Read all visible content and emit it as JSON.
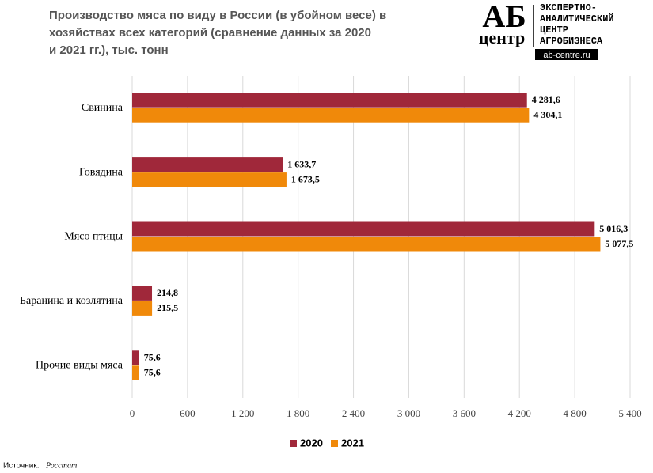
{
  "chart_data": {
    "type": "bar",
    "orientation": "horizontal",
    "title": [
      "Производство  мяса по виду в России (в убойном весе) в",
      "хозяйствах всех категорий (сравнение данных за 2020",
      "и 2021 гг.), тыс. тонн"
    ],
    "logo": {
      "mark_top": "АБ",
      "mark_bottom": "центр",
      "lines": [
        "ЭКСПЕРТНО-",
        "АНАЛИТИЧЕСКИЙ",
        "ЦЕНТР",
        "АГРОБИЗНЕСА"
      ],
      "site": "ab-centre.ru"
    },
    "categories": [
      "Свинина",
      "Говядина",
      "Мясо птицы",
      "Баранина и козлятина",
      "Прочие виды мяса"
    ],
    "series": [
      {
        "name": "2020",
        "color": "#a0283a",
        "values": [
          4281.6,
          1633.7,
          5016.3,
          214.8,
          75.6
        ],
        "value_labels": [
          "4 281,6",
          "1 633,7",
          "5 016,3",
          "214,8",
          "75,6"
        ]
      },
      {
        "name": "2021",
        "color": "#f0890a",
        "values": [
          4304.1,
          1673.5,
          5077.5,
          215.5,
          75.6
        ],
        "value_labels": [
          "4 304,1",
          "1 673,5",
          "5 077,5",
          "215,5",
          "75,6"
        ]
      }
    ],
    "xlim": [
      0,
      5400
    ],
    "xticks": [
      0,
      600,
      {
        "value": 1200,
        "label": "1 200"
      },
      {
        "value": 1800,
        "label": "1 800"
      },
      {
        "value": 2400,
        "label": "2 400"
      },
      {
        "value": 3000,
        "label": "3 000"
      },
      {
        "value": 3600,
        "label": "3 600"
      },
      {
        "value": 4200,
        "label": "4 200"
      },
      {
        "value": 4800,
        "label": "4 800"
      },
      {
        "value": 5400,
        "label": "5 400"
      }
    ],
    "grid": true,
    "legend": "bottom",
    "source_label": "Источник:",
    "source": "Росстат"
  }
}
